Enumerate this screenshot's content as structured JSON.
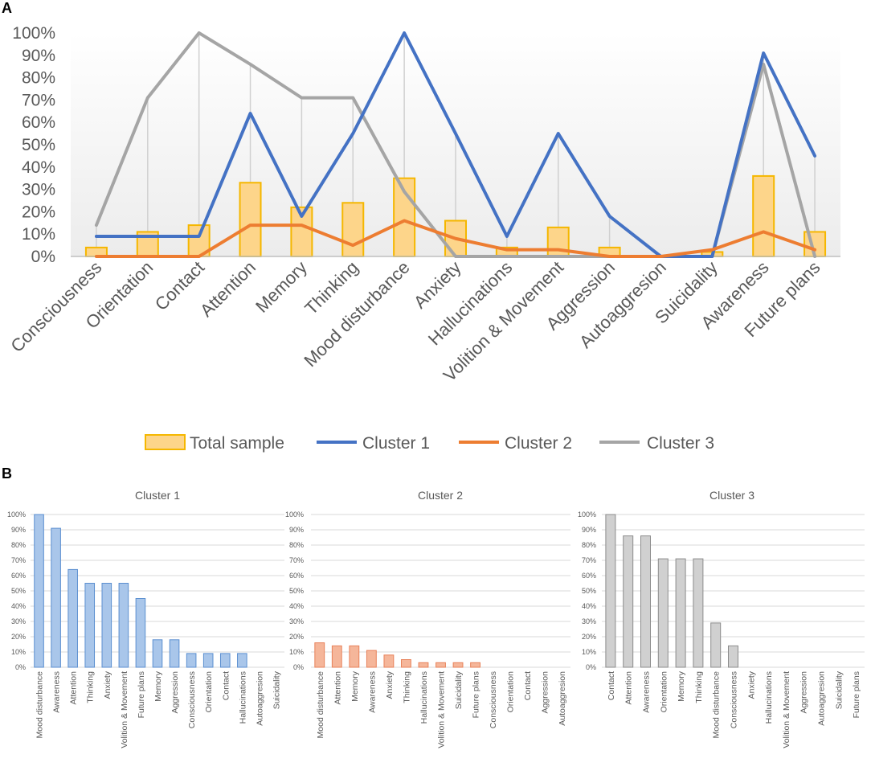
{
  "panel_a_label": "A",
  "panel_b_label": "B",
  "colors": {
    "total_fill": "#fdd58a",
    "total_stroke": "#f5b700",
    "cluster1": "#4472c4",
    "cluster2": "#ed7d31",
    "cluster3": "#a5a5a5",
    "bar1_fill": "#a9c6ea",
    "bar1_stroke": "#5b8fd0",
    "bar2_fill": "#f5b69a",
    "bar2_stroke": "#e8825a",
    "bar3_fill": "#d0d0d0",
    "bar3_stroke": "#8c8c8c",
    "grid": "#d9d9d9",
    "axis_text": "#595959"
  },
  "chart_data": [
    {
      "type": "bar+line",
      "title": "",
      "categories": [
        "Consciousness",
        "Orientation",
        "Contact",
        "Attention",
        "Memory",
        "Thinking",
        "Mood disturbance",
        "Anxiety",
        "Hallucinations",
        "Volition & Movement",
        "Aggression",
        "Autoaggresion",
        "Suicidality",
        "Awareness",
        "Future plans"
      ],
      "yticks": [
        "0%",
        "10%",
        "20%",
        "30%",
        "40%",
        "50%",
        "60%",
        "70%",
        "80%",
        "90%",
        "100%"
      ],
      "ylim": [
        0,
        100
      ],
      "series": [
        {
          "name": "Total sample",
          "kind": "bar",
          "values": [
            4,
            11,
            14,
            33,
            22,
            24,
            35,
            16,
            4,
            13,
            4,
            0,
            2,
            36,
            11
          ]
        },
        {
          "name": "Cluster 1",
          "kind": "line",
          "values": [
            9,
            9,
            9,
            64,
            18,
            55,
            100,
            55,
            9,
            55,
            18,
            0,
            0,
            91,
            45
          ]
        },
        {
          "name": "Cluster 2",
          "kind": "line",
          "values": [
            0,
            0,
            0,
            14,
            14,
            5,
            16,
            8,
            3,
            3,
            0,
            0,
            3,
            11,
            3
          ]
        },
        {
          "name": "Cluster 3",
          "kind": "line",
          "values": [
            14,
            71,
            100,
            86,
            71,
            71,
            29,
            0,
            0,
            0,
            0,
            0,
            0,
            86,
            0
          ]
        }
      ],
      "legend": [
        "Total sample",
        "Cluster 1",
        "Cluster 2",
        "Cluster 3"
      ]
    },
    {
      "type": "bar",
      "title": "Cluster 1",
      "categories": [
        "Mood disturbance",
        "Awareness",
        "Attention",
        "Thinking",
        "Anxiety",
        "Volition & Movement",
        "Future plans",
        "Memory",
        "Aggression",
        "Consciousness",
        "Orientation",
        "Contact",
        "Hallucinations",
        "Autoaggresion",
        "Suicidality"
      ],
      "values": [
        100,
        91,
        64,
        55,
        55,
        55,
        45,
        18,
        18,
        9,
        9,
        9,
        9,
        0,
        0
      ],
      "yticks": [
        "0%",
        "10%",
        "20%",
        "30%",
        "40%",
        "50%",
        "60%",
        "70%",
        "80%",
        "90%",
        "100%"
      ],
      "ylim": [
        0,
        100
      ]
    },
    {
      "type": "bar",
      "title": "Cluster 2",
      "categories": [
        "Mood disturbance",
        "Attention",
        "Memory",
        "Awareness",
        "Anxiety",
        "Thinking",
        "Hallucinations",
        "Volition & Movement",
        "Suicidality",
        "Future plans",
        "Consciousness",
        "Orientation",
        "Contact",
        "Aggression",
        "Autoaggresion"
      ],
      "values": [
        16,
        14,
        14,
        11,
        8,
        5,
        3,
        3,
        3,
        3,
        0,
        0,
        0,
        0,
        0
      ],
      "yticks": [
        "0%",
        "10%",
        "20%",
        "30%",
        "40%",
        "50%",
        "60%",
        "70%",
        "80%",
        "90%",
        "100%"
      ],
      "ylim": [
        0,
        100
      ]
    },
    {
      "type": "bar",
      "title": "Cluster 3",
      "categories": [
        "Contact",
        "Attention",
        "Awareness",
        "Orientation",
        "Memory",
        "Thinking",
        "Mood disturbance",
        "Consciousness",
        "Anxiety",
        "Hallucinations",
        "Volition & Movement",
        "Aggression",
        "Autoaggresion",
        "Suicidality",
        "Future plans"
      ],
      "values": [
        100,
        86,
        86,
        71,
        71,
        71,
        29,
        14,
        0,
        0,
        0,
        0,
        0,
        0,
        0
      ],
      "yticks": [
        "0%",
        "10%",
        "20%",
        "30%",
        "40%",
        "50%",
        "60%",
        "70%",
        "80%",
        "90%",
        "100%"
      ],
      "ylim": [
        0,
        100
      ]
    }
  ]
}
